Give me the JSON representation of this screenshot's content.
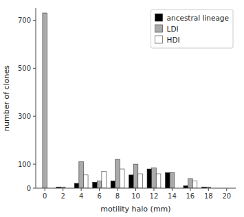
{
  "chart_data": {
    "type": "bar",
    "xlabel": "motility halo (mm)",
    "ylabel": "number of clones",
    "x": [
      0,
      2,
      4,
      6,
      8,
      10,
      12,
      14,
      16,
      18
    ],
    "xlim": [
      -1,
      21
    ],
    "xticks": [
      0,
      2,
      4,
      6,
      8,
      10,
      12,
      14,
      16,
      18,
      20
    ],
    "ylim": [
      0,
      750
    ],
    "yticks": [
      0,
      100,
      300,
      500,
      700
    ],
    "series": [
      {
        "name": "ancestral lineage",
        "color": "#000000",
        "values": [
          0,
          5,
          20,
          25,
          30,
          55,
          80,
          65,
          10,
          5
        ]
      },
      {
        "name": "LDI",
        "color": "#aaaaaa",
        "values": [
          730,
          5,
          110,
          30,
          120,
          100,
          85,
          65,
          40,
          5
        ]
      },
      {
        "name": "HDI",
        "color": "#ffffff",
        "values": [
          0,
          0,
          55,
          70,
          80,
          60,
          60,
          0,
          30,
          0
        ]
      }
    ],
    "grid": false,
    "legend": "upper right"
  }
}
